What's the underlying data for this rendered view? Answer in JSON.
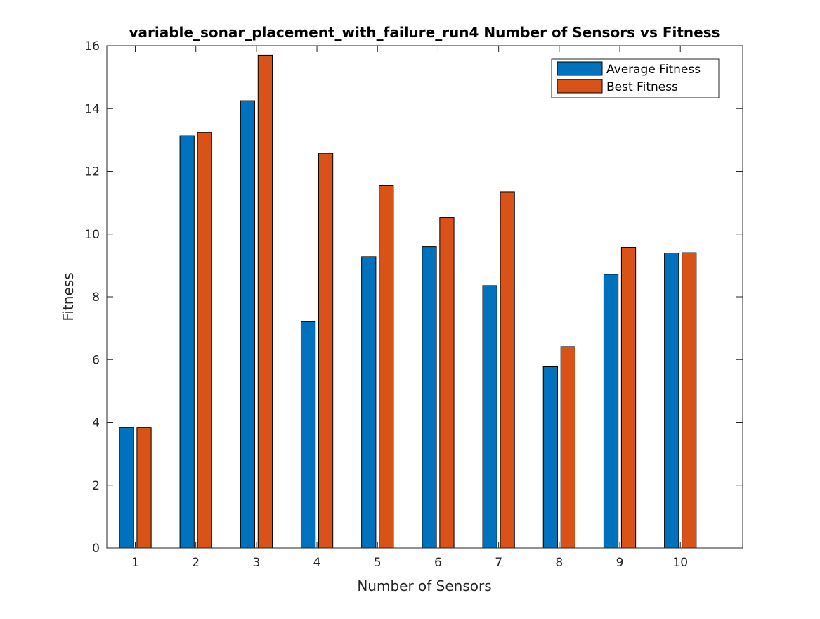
{
  "chart_data": {
    "type": "bar",
    "title": "variable_sonar_placement_with_failure_run4 Number of Sensors vs Fitness",
    "xlabel": "Number of Sensors",
    "ylabel": "Fitness",
    "categories": [
      "1",
      "2",
      "3",
      "4",
      "5",
      "6",
      "7",
      "8",
      "9",
      "10"
    ],
    "ylim": [
      0,
      16
    ],
    "yticks": [
      "0",
      "2",
      "4",
      "6",
      "8",
      "10",
      "12",
      "14",
      "16"
    ],
    "grid": false,
    "legend_position": "top-right",
    "series": [
      {
        "name": "Average Fitness",
        "color": "#0072BD",
        "values": [
          3.84,
          13.13,
          14.25,
          7.21,
          9.28,
          9.6,
          8.36,
          5.77,
          8.72,
          9.4
        ]
      },
      {
        "name": "Best Fitness",
        "color": "#D95319",
        "values": [
          3.84,
          13.24,
          15.7,
          12.57,
          11.55,
          10.52,
          11.34,
          6.41,
          9.58,
          9.41
        ]
      }
    ]
  }
}
